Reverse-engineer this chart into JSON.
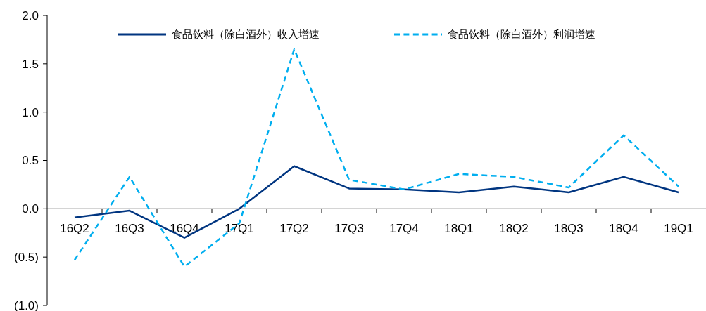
{
  "chart_data": {
    "type": "line",
    "categories": [
      "16Q2",
      "16Q3",
      "16Q4",
      "17Q1",
      "17Q2",
      "17Q3",
      "17Q4",
      "18Q1",
      "18Q2",
      "18Q3",
      "18Q4",
      "19Q1"
    ],
    "series": [
      {
        "name": "食品饮料（除白酒外）收入增速",
        "color": "#003580",
        "line_style": "solid",
        "values": [
          -0.09,
          -0.02,
          -0.3,
          0.0,
          0.44,
          0.21,
          0.2,
          0.17,
          0.23,
          0.17,
          0.33,
          0.17
        ]
      },
      {
        "name": "食品饮料（除白酒外）利润增速",
        "color": "#00aeef",
        "line_style": "dashed",
        "values": [
          -0.53,
          0.33,
          -0.6,
          -0.15,
          1.65,
          0.3,
          0.2,
          0.36,
          0.33,
          0.22,
          0.76,
          0.23
        ]
      }
    ],
    "ylim": [
      -1.0,
      2.0
    ],
    "yticks": [
      {
        "value": -1.0,
        "label": "(1.0)"
      },
      {
        "value": -0.5,
        "label": "(0.5)"
      },
      {
        "value": 0,
        "label": "0.0"
      },
      0.5,
      {
        "value": 1,
        "label": "1.0"
      },
      1.5,
      {
        "value": 2,
        "label": "2.0"
      }
    ],
    "grid": false,
    "legend": "top",
    "marker": "none"
  }
}
